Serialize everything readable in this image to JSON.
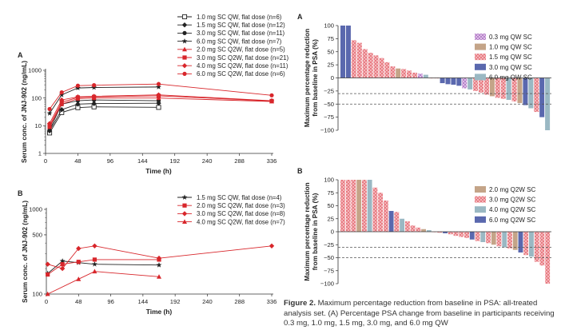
{
  "caption": {
    "label": "Figure 2.",
    "text": "Maximum percentage reduction from baseline in PSA: all-treated analysis set. (A) Percentage PSA change from baseline in participants receiving 0.3 mg, 1.0 mg, 1.5 mg, 3.0 mg, and 6.0 mg QW"
  },
  "colors": {
    "black": "#222222",
    "red": "#d8262b",
    "gray": "#555555",
    "purple": "#c89ad8",
    "tan": "#c4a488",
    "pink": "#e0606a",
    "blue": "#5a68ae",
    "teal": "#9ab8c3"
  },
  "chart_data": [
    {
      "panel": "A",
      "type": "line",
      "title": "",
      "xlabel": "Time (h)",
      "ylabel": "Serum conc. of JNJ-902 (ng/mL)",
      "yscale": "log",
      "ylim": [
        1,
        1000
      ],
      "xlim": [
        0,
        336
      ],
      "xticks": [
        0,
        48,
        96,
        144,
        192,
        240,
        288,
        336
      ],
      "yticks": [
        1,
        10,
        100,
        1000
      ],
      "series": [
        {
          "name": "1.0 mg SC QW, flat dose (n=6)",
          "color": "black",
          "marker": "square-open",
          "x": [
            6,
            24,
            48,
            72,
            168
          ],
          "y": [
            5.5,
            30,
            45,
            48,
            46
          ]
        },
        {
          "name": "1.5 mg SC QW, flat dose (n=12)",
          "color": "black",
          "marker": "diamond",
          "x": [
            6,
            24,
            48,
            72,
            168
          ],
          "y": [
            6.5,
            38,
            60,
            63,
            65
          ]
        },
        {
          "name": "3.0 mg SC QW, flat dose (n=11)",
          "color": "black",
          "marker": "circle",
          "x": [
            6,
            24,
            48,
            72,
            168
          ],
          "y": [
            7,
            60,
            80,
            85,
            80
          ]
        },
        {
          "name": "6.0 mg SC QW, flat dose (n=7)",
          "color": "black",
          "marker": "star",
          "x": [
            6,
            24,
            48,
            72,
            168
          ],
          "y": [
            28,
            130,
            230,
            240,
            250
          ]
        },
        {
          "name": "2.0 mg SC Q2W, flat dose (n=5)",
          "color": "red",
          "marker": "triangle",
          "x": [
            6,
            24,
            48,
            72,
            168,
            336
          ],
          "y": [
            9,
            60,
            95,
            100,
            100,
            75
          ]
        },
        {
          "name": "3.0 mg SC Q2W, flat dose (n=21)",
          "color": "red",
          "marker": "square",
          "x": [
            6,
            24,
            48,
            72,
            168,
            336
          ],
          "y": [
            10,
            70,
            105,
            110,
            120,
            78
          ]
        },
        {
          "name": "4.0 mg SC Q2W, flat dose (n=11)",
          "color": "red",
          "marker": "diamond",
          "x": [
            6,
            24,
            48,
            72,
            168,
            336
          ],
          "y": [
            12,
            85,
            110,
            115,
            130,
            80
          ]
        },
        {
          "name": "6.0 mg SC Q2W, flat dose (n=6)",
          "color": "red",
          "marker": "circle",
          "x": [
            6,
            24,
            48,
            72,
            168,
            336
          ],
          "y": [
            40,
            160,
            280,
            290,
            320,
            125
          ]
        }
      ]
    },
    {
      "panel": "B",
      "type": "line",
      "title": "",
      "xlabel": "Time (h)",
      "ylabel": "Serum conc. of JNJ-902 (ng/mL)",
      "yscale": "log",
      "ylim": [
        100,
        1000
      ],
      "xlim": [
        0,
        336
      ],
      "xticks": [
        0,
        48,
        96,
        144,
        192,
        240,
        288,
        336
      ],
      "yticks": [
        100,
        500,
        1000
      ],
      "series": [
        {
          "name": "1.5 mg SC QW, flat dose (n=4)",
          "color": "black",
          "marker": "star",
          "x": [
            2,
            24,
            48,
            72,
            168
          ],
          "y": [
            175,
            245,
            235,
            225,
            220
          ]
        },
        {
          "name": "2.0 mg SC Q2W, flat dose (n=3)",
          "color": "red",
          "marker": "square",
          "x": [
            2,
            24,
            48,
            72,
            168
          ],
          "y": [
            170,
            225,
            240,
            255,
            255
          ]
        },
        {
          "name": "3.0 mg SC Q2W, flat dose (n=8)",
          "color": "red",
          "marker": "diamond",
          "x": [
            2,
            24,
            48,
            72,
            168,
            336
          ],
          "y": [
            225,
            200,
            345,
            370,
            265,
            370
          ]
        },
        {
          "name": "4.0 mg SC Q2W, flat dose (n=7)",
          "color": "red",
          "marker": "triangle",
          "x": [
            2,
            48,
            72,
            168
          ],
          "y": [
            100,
            150,
            185,
            160
          ]
        }
      ]
    },
    {
      "panel": "A",
      "type": "bar",
      "title": "",
      "xlabel": "",
      "ylabel": "Maximum percentage reduction from baseline in PSA (%)",
      "ylim": [
        -100,
        100
      ],
      "yticks": [
        100,
        75,
        50,
        25,
        0,
        -25,
        -50,
        -75,
        -100
      ],
      "reference_lines": [
        -30,
        -50
      ],
      "legend": [
        "0.3 mg QW SC",
        "1.0 mg QW SC",
        "1.5 mg QW SC",
        "3.0 mg QW SC",
        "6.0 mg QW SC"
      ],
      "legend_keys": [
        "purple",
        "tan",
        "pink",
        "blue",
        "teal"
      ],
      "bars": [
        {
          "v": 100,
          "c": "blue"
        },
        {
          "v": 100,
          "c": "blue"
        },
        {
          "v": 72,
          "c": "pink"
        },
        {
          "v": 67,
          "c": "pink"
        },
        {
          "v": 55,
          "c": "pink"
        },
        {
          "v": 48,
          "c": "pink"
        },
        {
          "v": 43,
          "c": "pink"
        },
        {
          "v": 38,
          "c": "pink"
        },
        {
          "v": 30,
          "c": "pink"
        },
        {
          "v": 22,
          "c": "pink"
        },
        {
          "v": 18,
          "c": "tan"
        },
        {
          "v": 17,
          "c": "pink"
        },
        {
          "v": 14,
          "c": "pink"
        },
        {
          "v": 10,
          "c": "pink"
        },
        {
          "v": 8,
          "c": "purple"
        },
        {
          "v": 6,
          "c": "teal"
        },
        {
          "v": 0,
          "c": "pink"
        },
        {
          "v": 0,
          "c": "pink"
        },
        {
          "v": -10,
          "c": "blue"
        },
        {
          "v": -12,
          "c": "blue"
        },
        {
          "v": -13,
          "c": "blue"
        },
        {
          "v": -15,
          "c": "blue"
        },
        {
          "v": -20,
          "c": "purple"
        },
        {
          "v": -22,
          "c": "teal"
        },
        {
          "v": -25,
          "c": "pink"
        },
        {
          "v": -28,
          "c": "pink"
        },
        {
          "v": -32,
          "c": "pink"
        },
        {
          "v": -35,
          "c": "tan"
        },
        {
          "v": -38,
          "c": "pink"
        },
        {
          "v": -40,
          "c": "pink"
        },
        {
          "v": -42,
          "c": "teal"
        },
        {
          "v": -45,
          "c": "pink"
        },
        {
          "v": -48,
          "c": "tan"
        },
        {
          "v": -52,
          "c": "blue"
        },
        {
          "v": -58,
          "c": "teal"
        },
        {
          "v": -65,
          "c": "pink"
        },
        {
          "v": -75,
          "c": "blue"
        },
        {
          "v": -100,
          "c": "teal"
        }
      ]
    },
    {
      "panel": "B",
      "type": "bar",
      "title": "",
      "xlabel": "",
      "ylabel": "Maximum percentage reduction from baseline in PSA (%)",
      "ylim": [
        -100,
        100
      ],
      "yticks": [
        100,
        75,
        50,
        25,
        0,
        -25,
        -50,
        -75,
        -100
      ],
      "reference_lines": [
        -30,
        -50
      ],
      "legend": [
        "2.0 mg Q2W SC",
        "3.0 mg Q2W SC",
        "4.0 mg Q2W SC",
        "6.0 mg Q2W SC"
      ],
      "legend_keys": [
        "tan",
        "pink",
        "teal",
        "blue"
      ],
      "bars": [
        {
          "v": 100,
          "c": "pink"
        },
        {
          "v": 100,
          "c": "pink"
        },
        {
          "v": 100,
          "c": "pink"
        },
        {
          "v": 100,
          "c": "tan"
        },
        {
          "v": 100,
          "c": "pink"
        },
        {
          "v": 100,
          "c": "teal"
        },
        {
          "v": 85,
          "c": "pink"
        },
        {
          "v": 75,
          "c": "pink"
        },
        {
          "v": 60,
          "c": "pink"
        },
        {
          "v": 40,
          "c": "blue"
        },
        {
          "v": 38,
          "c": "pink"
        },
        {
          "v": 25,
          "c": "teal"
        },
        {
          "v": 20,
          "c": "pink"
        },
        {
          "v": 12,
          "c": "pink"
        },
        {
          "v": 8,
          "c": "pink"
        },
        {
          "v": 5,
          "c": "tan"
        },
        {
          "v": 3,
          "c": "teal"
        },
        {
          "v": 0,
          "c": "pink"
        },
        {
          "v": -2,
          "c": "pink"
        },
        {
          "v": -3,
          "c": "blue"
        },
        {
          "v": -5,
          "c": "pink"
        },
        {
          "v": -8,
          "c": "pink"
        },
        {
          "v": -10,
          "c": "pink"
        },
        {
          "v": -12,
          "c": "pink"
        },
        {
          "v": -15,
          "c": "blue"
        },
        {
          "v": -18,
          "c": "pink"
        },
        {
          "v": -20,
          "c": "teal"
        },
        {
          "v": -22,
          "c": "pink"
        },
        {
          "v": -25,
          "c": "tan"
        },
        {
          "v": -28,
          "c": "pink"
        },
        {
          "v": -30,
          "c": "teal"
        },
        {
          "v": -32,
          "c": "pink"
        },
        {
          "v": -35,
          "c": "tan"
        },
        {
          "v": -40,
          "c": "blue"
        },
        {
          "v": -45,
          "c": "pink"
        },
        {
          "v": -48,
          "c": "teal"
        },
        {
          "v": -58,
          "c": "pink"
        },
        {
          "v": -65,
          "c": "pink"
        },
        {
          "v": -100,
          "c": "pink"
        }
      ]
    }
  ]
}
